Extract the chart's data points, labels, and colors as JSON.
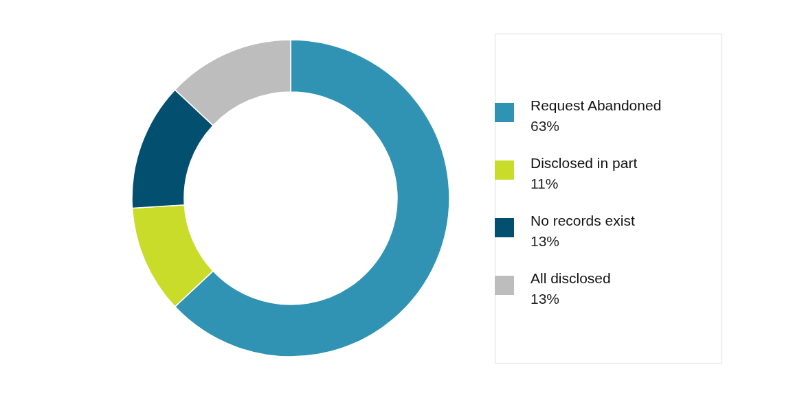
{
  "chart_data": {
    "type": "donut",
    "categories": [
      "Request Abandoned",
      "Disclosed in part",
      "No records exist",
      "All disclosed"
    ],
    "values": [
      63,
      11,
      13,
      13
    ],
    "value_labels": [
      "63%",
      "11%",
      "13%",
      "13%"
    ],
    "colors": [
      "#3093b3",
      "#c9dc2a",
      "#034f70",
      "#bdbdbd"
    ],
    "legend": "right"
  }
}
